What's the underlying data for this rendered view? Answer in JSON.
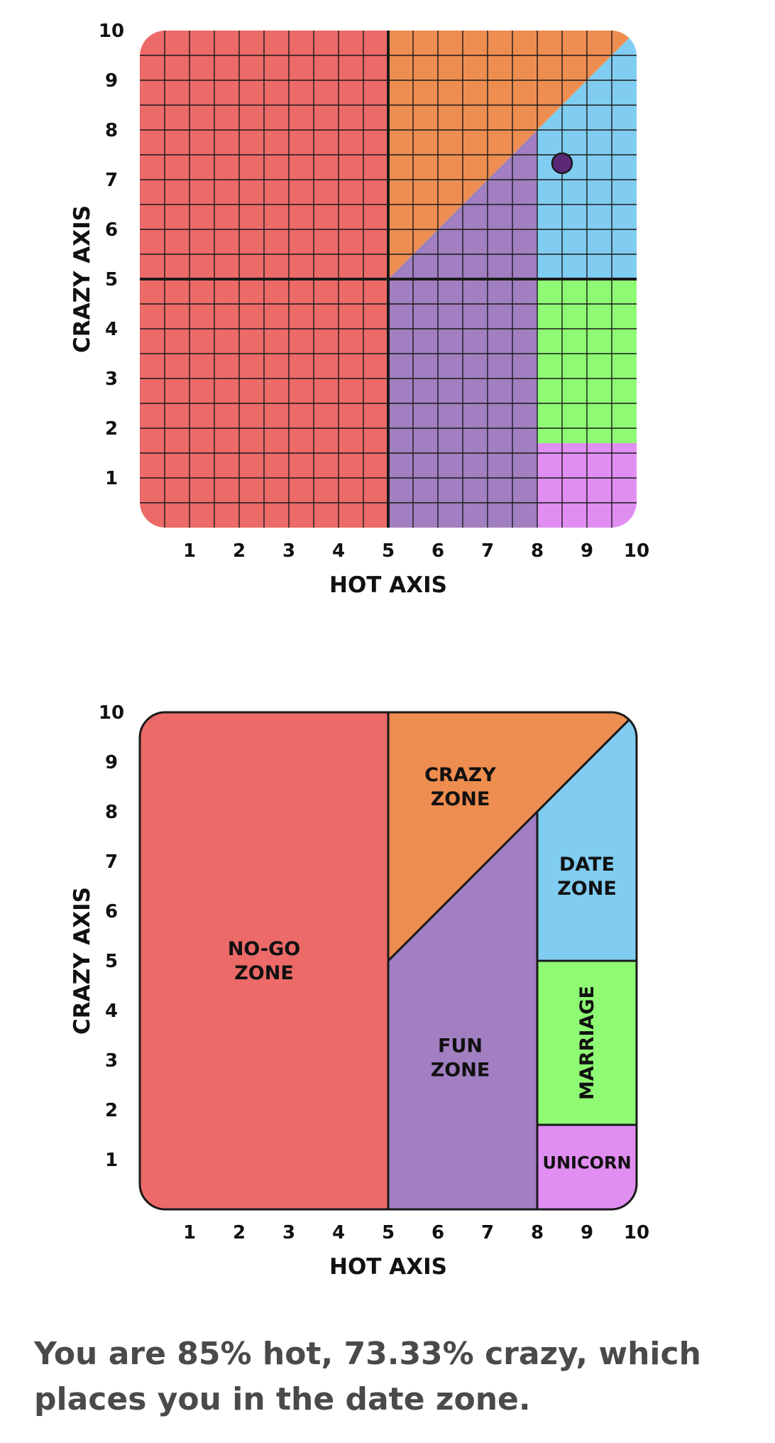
{
  "chart_data": [
    {
      "type": "scatter",
      "xlabel": "HOT AXIS",
      "ylabel": "CRAZY AXIS",
      "xlim": [
        0,
        10
      ],
      "ylim": [
        0,
        10
      ],
      "x_ticks": [
        1,
        2,
        3,
        4,
        5,
        6,
        7,
        8,
        9,
        10
      ],
      "y_ticks": [
        1,
        2,
        3,
        4,
        5,
        6,
        7,
        8,
        9,
        10
      ],
      "grid": true,
      "points": [
        {
          "x": 8.5,
          "y": 7.33
        }
      ],
      "zones": [
        {
          "id": "no-go",
          "color": "#ec6a68",
          "polygon": [
            [
              0,
              0
            ],
            [
              5,
              0
            ],
            [
              5,
              10
            ],
            [
              0,
              10
            ]
          ]
        },
        {
          "id": "crazy",
          "color": "#ee8d50",
          "polygon": [
            [
              5,
              5
            ],
            [
              5,
              10
            ],
            [
              10,
              10
            ]
          ]
        },
        {
          "id": "fun",
          "color": "#a17fc1",
          "polygon": [
            [
              5,
              0
            ],
            [
              8,
              0
            ],
            [
              8,
              8
            ],
            [
              5,
              5
            ]
          ]
        },
        {
          "id": "date",
          "color": "#80cdf1",
          "polygon": [
            [
              8,
              5
            ],
            [
              10,
              5
            ],
            [
              10,
              10
            ],
            [
              8,
              8
            ]
          ]
        },
        {
          "id": "marriage",
          "color": "#8ffa74",
          "polygon": [
            [
              8,
              1.7
            ],
            [
              10,
              1.7
            ],
            [
              10,
              5
            ],
            [
              8,
              5
            ]
          ]
        },
        {
          "id": "unicorn",
          "color": "#e08ef2",
          "polygon": [
            [
              8,
              0
            ],
            [
              10,
              0
            ],
            [
              10,
              1.7
            ],
            [
              8,
              1.7
            ]
          ]
        }
      ],
      "dividers": [
        {
          "x": 5
        },
        {
          "y": 5
        }
      ],
      "point_color": "#5b2878"
    },
    {
      "type": "area",
      "xlabel": "HOT AXIS",
      "ylabel": "CRAZY AXIS",
      "xlim": [
        0,
        10
      ],
      "ylim": [
        0,
        10
      ],
      "x_ticks": [
        1,
        2,
        3,
        4,
        5,
        6,
        7,
        8,
        9,
        10
      ],
      "y_ticks": [
        1,
        2,
        3,
        4,
        5,
        6,
        7,
        8,
        9,
        10
      ],
      "grid": false,
      "zones": [
        {
          "id": "no-go",
          "lines": [
            "NO-GO",
            "ZONE"
          ],
          "color": "#ec6a68",
          "label_at": [
            2.5,
            5
          ],
          "polygon": [
            [
              0,
              0
            ],
            [
              5,
              0
            ],
            [
              5,
              10
            ],
            [
              0,
              10
            ]
          ]
        },
        {
          "id": "crazy",
          "lines": [
            "CRAZY",
            "ZONE"
          ],
          "color": "#ee8d50",
          "label_at": [
            6.45,
            8.5
          ],
          "polygon": [
            [
              5,
              5
            ],
            [
              5,
              10
            ],
            [
              10,
              10
            ]
          ]
        },
        {
          "id": "fun",
          "lines": [
            "FUN",
            "ZONE"
          ],
          "color": "#a17fc1",
          "label_at": [
            6.45,
            3.05
          ],
          "polygon": [
            [
              5,
              0
            ],
            [
              8,
              0
            ],
            [
              8,
              8
            ],
            [
              5,
              5
            ]
          ]
        },
        {
          "id": "date",
          "lines": [
            "DATE",
            "ZONE"
          ],
          "color": "#80cdf1",
          "label_at": [
            9,
            6.7
          ],
          "polygon": [
            [
              8,
              5
            ],
            [
              10,
              5
            ],
            [
              10,
              10
            ],
            [
              8,
              8
            ]
          ]
        },
        {
          "id": "marriage",
          "lines": [
            "MARRIAGE"
          ],
          "color": "#8ffa74",
          "label_at": [
            9,
            3.35
          ],
          "rotate": true,
          "polygon": [
            [
              8,
              1.7
            ],
            [
              10,
              1.7
            ],
            [
              10,
              5
            ],
            [
              8,
              5
            ]
          ]
        },
        {
          "id": "unicorn",
          "lines": [
            "UNICORN"
          ],
          "color": "#e08ef2",
          "label_at": [
            9,
            0.95
          ],
          "small": true,
          "polygon": [
            [
              8,
              0
            ],
            [
              10,
              0
            ],
            [
              10,
              1.7
            ],
            [
              8,
              1.7
            ]
          ]
        }
      ]
    }
  ],
  "result_text": "You are 85% hot, 73.33% crazy, which places you in the date zone."
}
